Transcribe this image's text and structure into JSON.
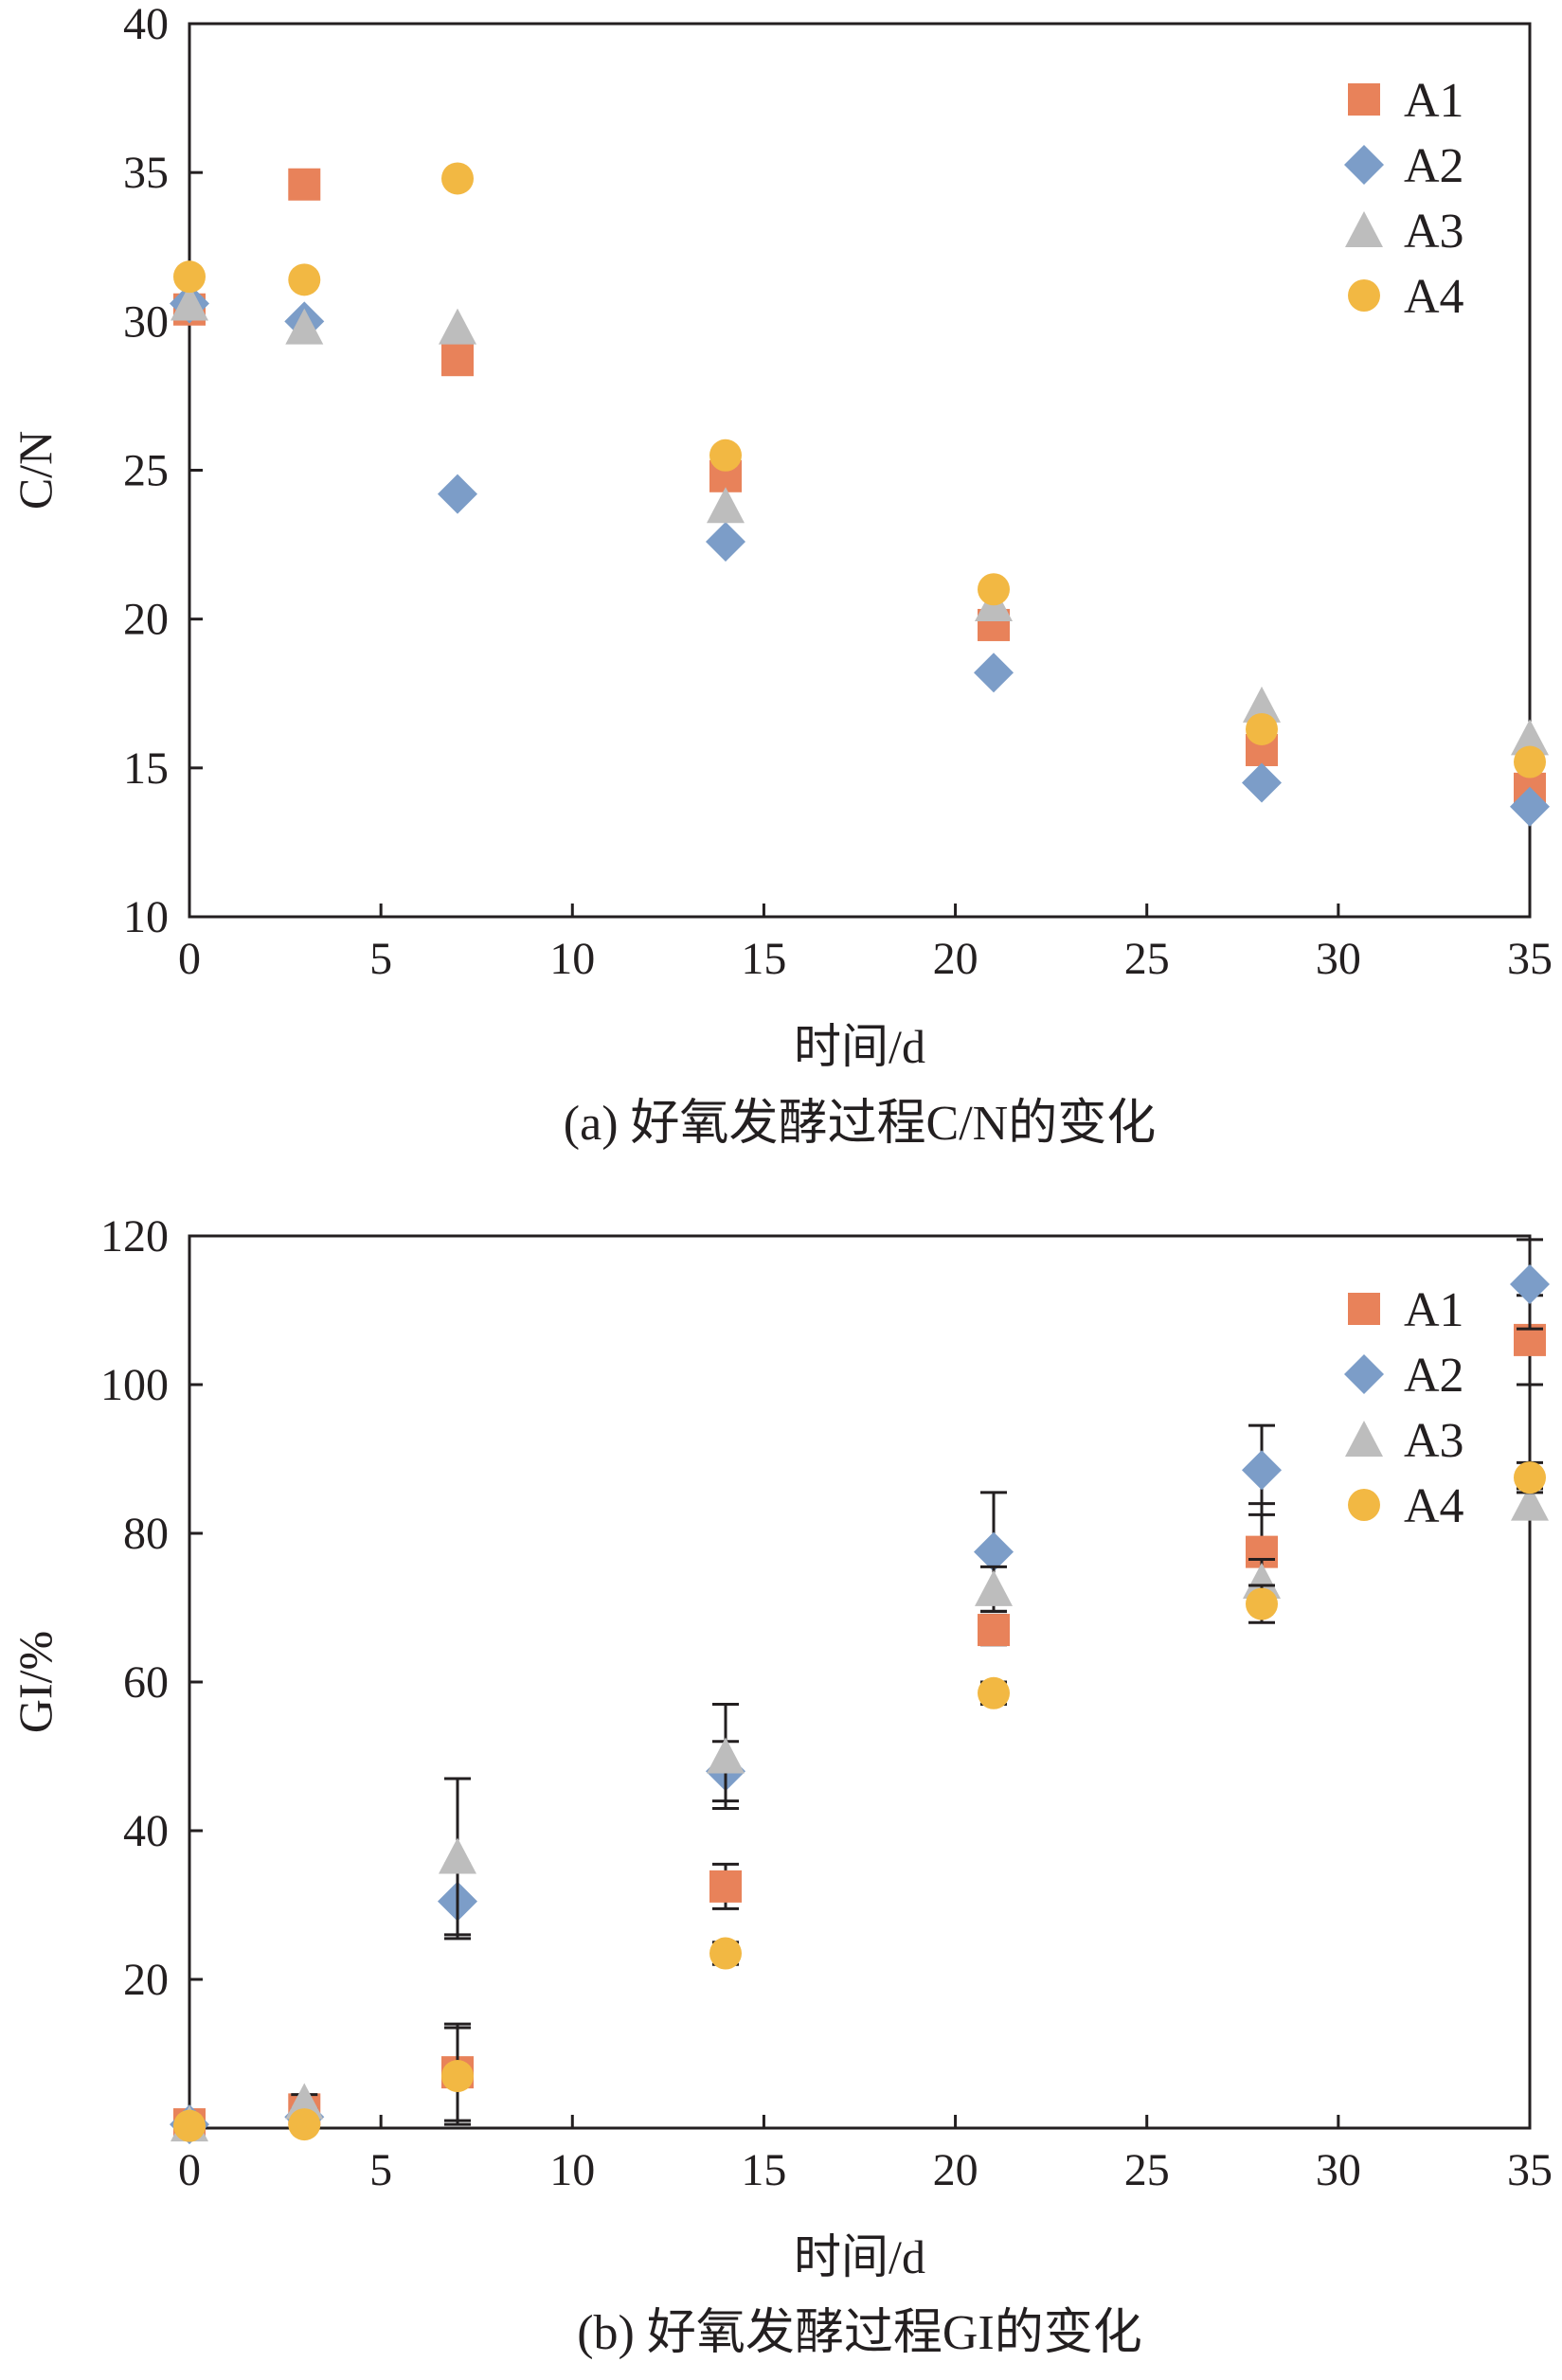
{
  "colors": {
    "A1": "#e8825a",
    "A2": "#7c9dc8",
    "A3": "#bdbdbd",
    "A4": "#f2b843",
    "axis": "#231f20",
    "error": "#231f20"
  },
  "chart_data": [
    {
      "type": "scatter",
      "caption": "(a) 好氧发酵过程C/N的变化",
      "xlabel": "时间/d",
      "ylabel": "C/N",
      "xlim": [
        0,
        35
      ],
      "ylim": [
        10,
        40
      ],
      "xticks": [
        "0",
        "5",
        "10",
        "15",
        "20",
        "25",
        "30",
        "35"
      ],
      "yticks": [
        "10",
        "15",
        "20",
        "25",
        "30",
        "35",
        "40"
      ],
      "legend_position": "top-right",
      "x": [
        0,
        3,
        7,
        14,
        21,
        28,
        35
      ],
      "series": [
        {
          "name": "A1",
          "marker": "square",
          "values": [
            30.4,
            34.6,
            28.7,
            24.8,
            19.8,
            15.6,
            14.3
          ],
          "errors": [
            0.3,
            0.3,
            0.5,
            0.4,
            0.3,
            0.4,
            0.4
          ]
        },
        {
          "name": "A2",
          "marker": "diamond",
          "values": [
            30.6,
            30.0,
            24.2,
            22.6,
            18.2,
            14.5,
            13.7
          ],
          "errors": [
            0.3,
            0.3,
            0.3,
            0.3,
            0.3,
            0.3,
            0.3
          ]
        },
        {
          "name": "A3",
          "marker": "triangle",
          "values": [
            30.6,
            29.8,
            29.8,
            23.8,
            20.5,
            17.1,
            16.0
          ],
          "errors": [
            0.3,
            0.3,
            0.4,
            0.4,
            0.4,
            0.4,
            0.5
          ]
        },
        {
          "name": "A4",
          "marker": "circle",
          "values": [
            31.5,
            31.4,
            34.8,
            25.5,
            21.0,
            16.3,
            15.2
          ],
          "errors": [
            0.3,
            0.3,
            0.3,
            0.3,
            0.3,
            0.3,
            0.3
          ]
        }
      ]
    },
    {
      "type": "scatter",
      "caption": "(b) 好氧发酵过程GI的变化",
      "xlabel": "时间/d",
      "ylabel": "GI/%",
      "xlim": [
        0,
        35
      ],
      "ylim": [
        0,
        120
      ],
      "xticks": [
        "0",
        "5",
        "10",
        "15",
        "20",
        "25",
        "30",
        "35"
      ],
      "yticks": [
        "20",
        "40",
        "60",
        "80",
        "100",
        "120"
      ],
      "legend_position": "top-right",
      "x": [
        0,
        3,
        7,
        14,
        21,
        28,
        35
      ],
      "series": [
        {
          "name": "A1",
          "marker": "square",
          "values": [
            0.5,
            2.5,
            7.5,
            32.5,
            67.0,
            77.5,
            106.0
          ],
          "errors": [
            0.5,
            1.0,
            6.5,
            3.0,
            2.0,
            6.5,
            6.0
          ]
        },
        {
          "name": "A2",
          "marker": "diamond",
          "values": [
            0.5,
            1.5,
            30.5,
            48.0,
            77.5,
            88.5,
            113.5
          ],
          "errors": [
            0.5,
            1.0,
            5.0,
            4.0,
            8.0,
            6.0,
            6.0
          ]
        },
        {
          "name": "A3",
          "marker": "triangle",
          "values": [
            0.5,
            3.5,
            36.5,
            50.0,
            72.5,
            73.5,
            84.0
          ],
          "errors": [
            0.5,
            1.0,
            10.5,
            7.0,
            3.0,
            3.0,
            2.0
          ]
        },
        {
          "name": "A4",
          "marker": "circle",
          "values": [
            0.3,
            0.5,
            7.0,
            23.5,
            58.5,
            70.5,
            87.5
          ],
          "errors": [
            0.3,
            0.5,
            6.5,
            1.5,
            1.5,
            2.5,
            2.0
          ]
        }
      ]
    }
  ]
}
